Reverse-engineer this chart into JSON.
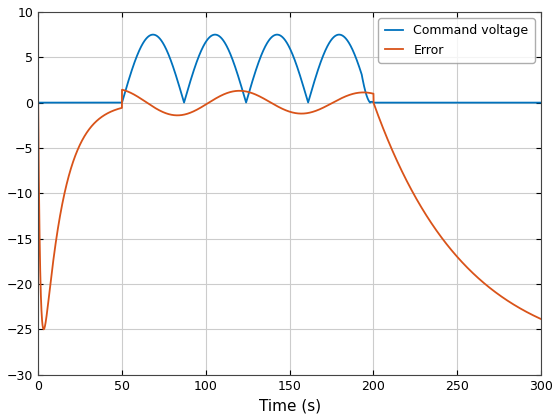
{
  "title": "",
  "xlabel": "Time (s)",
  "ylabel": "",
  "xlim": [
    0,
    300
  ],
  "ylim": [
    -30,
    10
  ],
  "xticks": [
    0,
    50,
    100,
    150,
    200,
    250,
    300
  ],
  "yticks": [
    -30,
    -25,
    -20,
    -15,
    -10,
    -5,
    0,
    5,
    10
  ],
  "cmd_color": "#0072BD",
  "error_color": "#D95319",
  "cmd_label": "Command voltage",
  "error_label": "Error",
  "background_color": "#FFFFFF",
  "grid_color": "#CCCCCC",
  "legend_loc": "upper right",
  "cmd_amplitude": 7.5,
  "cmd_t_start": 50,
  "cmd_t_end": 200,
  "cmd_period": 37.0,
  "error_initial": -25.0,
  "error_tau_rise": 8.0,
  "error_osc_amp": 1.5,
  "error_t_end": 200,
  "error_final_tau": 55.0,
  "error_final_val": -28.5
}
